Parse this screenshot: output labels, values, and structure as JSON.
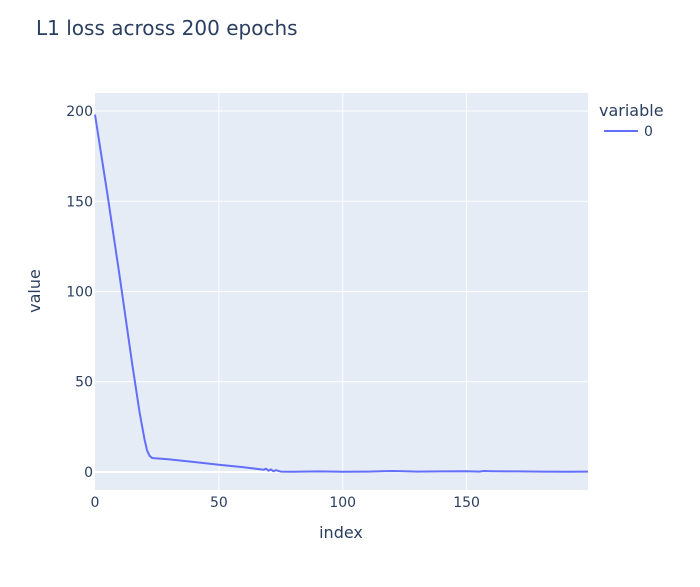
{
  "chart_data": {
    "type": "line",
    "title": "L1 loss across 200 epochs",
    "xlabel": "index",
    "ylabel": "value",
    "xlim": [
      0,
      199
    ],
    "ylim": [
      -10,
      210
    ],
    "x_ticks": [
      0,
      50,
      100,
      150
    ],
    "y_ticks": [
      0,
      50,
      100,
      150,
      200
    ],
    "grid": true,
    "legend": {
      "title": "variable",
      "position": "top-right"
    },
    "colors": {
      "plot_bg": "#E5ECF6",
      "grid": "#ffffff",
      "line": "#636EFA",
      "text": "#2a3f5f"
    },
    "series": [
      {
        "name": "0",
        "x": [
          0,
          5,
          10,
          15,
          18,
          20,
          21,
          22,
          23,
          24,
          25,
          30,
          40,
          50,
          60,
          65,
          68,
          69,
          70,
          71,
          72,
          73,
          75,
          80,
          90,
          100,
          110,
          120,
          125,
          130,
          140,
          150,
          155,
          157,
          160,
          170,
          180,
          190,
          199
        ],
        "values": [
          198,
          154,
          108,
          60,
          33,
          18,
          12,
          9,
          7.8,
          7.6,
          7.5,
          7,
          5.5,
          4,
          2.6,
          1.8,
          1.2,
          1.8,
          0.7,
          1.4,
          0.4,
          1,
          0.2,
          0.1,
          0.3,
          0.1,
          0.2,
          0.5,
          0.4,
          0.2,
          0.3,
          0.4,
          0.2,
          0.5,
          0.4,
          0.3,
          0.2,
          0.1,
          0.2
        ]
      }
    ]
  }
}
